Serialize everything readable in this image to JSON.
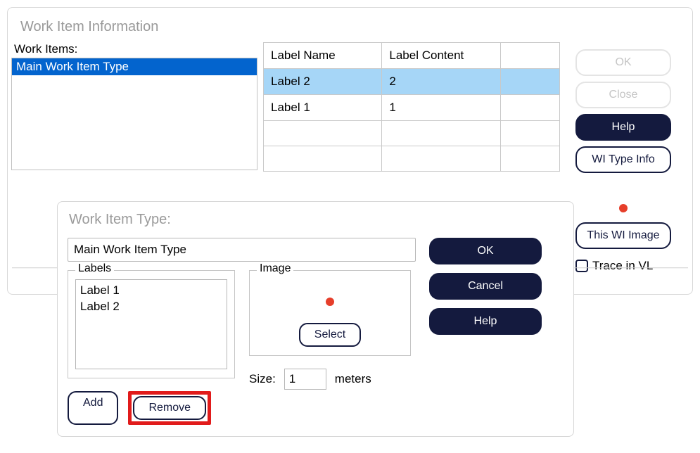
{
  "outer": {
    "title": "Work Item Information",
    "work_items_label": "Work Items:",
    "work_items": [
      {
        "name": "Main Work Item Type",
        "selected": true
      }
    ],
    "labels_table": {
      "col_name": "Label Name",
      "col_content": "Label Content",
      "rows": [
        {
          "name": "Label 2",
          "content": "2",
          "selected": true
        },
        {
          "name": "Label 1",
          "content": "1",
          "selected": false
        }
      ]
    },
    "buttons": {
      "ok": "OK",
      "close": "Close",
      "help": "Help",
      "wi_type_info": "WI Type Info",
      "this_wi_image": "This WI Image"
    },
    "trace_label": "Trace in VL",
    "trace_checked": false,
    "colors": {
      "selection_bg": "#0364ce",
      "row_highlight": "#a6d6f7",
      "dark_btn": "#141a3e",
      "dot": "#e63e2a"
    }
  },
  "inner": {
    "title": "Work Item Type:",
    "type_value": "Main Work Item Type",
    "labels_legend": "Labels",
    "labels": [
      "Label 1",
      "Label 2"
    ],
    "add_label": "Add",
    "remove_label": "Remove",
    "image_legend": "Image",
    "select_label": "Select",
    "size_label": "Size:",
    "size_value": "1",
    "size_unit": "meters",
    "buttons": {
      "ok": "OK",
      "cancel": "Cancel",
      "help": "Help"
    },
    "highlight_remove": true
  }
}
